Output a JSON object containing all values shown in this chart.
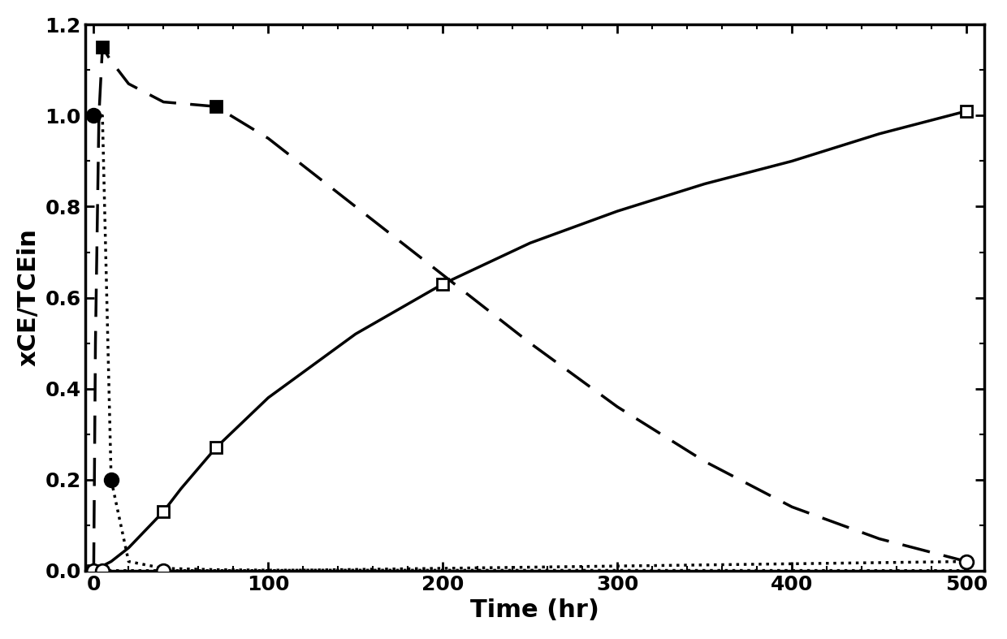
{
  "title": "",
  "xlabel": "Time (hr)",
  "ylabel": "xCE/TCEin",
  "xlim": [
    -5,
    510
  ],
  "ylim": [
    0,
    1.2
  ],
  "yticks": [
    0,
    0.2,
    0.4,
    0.6,
    0.8,
    1.0,
    1.2
  ],
  "xticks": [
    0,
    100,
    200,
    300,
    400,
    500
  ],
  "solid_line_x": [
    0,
    2,
    5,
    10,
    20,
    30,
    40,
    50,
    70,
    100,
    150,
    200,
    250,
    300,
    350,
    400,
    450,
    500
  ],
  "solid_line_y": [
    0.0,
    0.005,
    0.01,
    0.02,
    0.05,
    0.09,
    0.13,
    0.18,
    0.27,
    0.38,
    0.52,
    0.63,
    0.72,
    0.79,
    0.85,
    0.9,
    0.96,
    1.01
  ],
  "dashed_line_x": [
    0,
    1,
    3,
    5,
    10,
    20,
    40,
    70,
    100,
    150,
    200,
    250,
    300,
    350,
    400,
    450,
    500
  ],
  "dashed_line_y": [
    0.0,
    0.5,
    1.0,
    1.15,
    1.12,
    1.07,
    1.03,
    1.02,
    0.95,
    0.8,
    0.65,
    0.5,
    0.36,
    0.24,
    0.14,
    0.07,
    0.02
  ],
  "dotted_circ_line_x": [
    0,
    1,
    3,
    5,
    10,
    20,
    40,
    70,
    100,
    500
  ],
  "dotted_circ_line_y": [
    1.0,
    1.0,
    1.0,
    1.0,
    0.2,
    0.02,
    0.005,
    0.002,
    0.001,
    0.0
  ],
  "open_circ_x": [
    0,
    1,
    3,
    5,
    10,
    20,
    40,
    100,
    500
  ],
  "open_circ_y": [
    0.0,
    0.0,
    0.0,
    0.0,
    0.0,
    0.0,
    0.0,
    0.0,
    0.02
  ],
  "solid_sq_data_x": [
    0,
    40,
    70,
    200,
    500
  ],
  "solid_sq_data_y": [
    0.0,
    0.13,
    0.27,
    0.63,
    1.01
  ],
  "filled_sq_data_x": [
    5,
    70
  ],
  "filled_sq_data_y": [
    1.15,
    1.02
  ],
  "filled_circ_data_x": [
    0,
    10
  ],
  "filled_circ_data_y": [
    1.0,
    0.2
  ],
  "open_circ_data_x": [
    0,
    5,
    40,
    500
  ],
  "open_circ_data_y": [
    0.0,
    0.0,
    0.0,
    0.02
  ],
  "bg_color": "#ffffff",
  "line_color": "#000000",
  "linewidth": 2.5,
  "markersize": 10,
  "fontsize_label": 22,
  "fontsize_tick": 18
}
